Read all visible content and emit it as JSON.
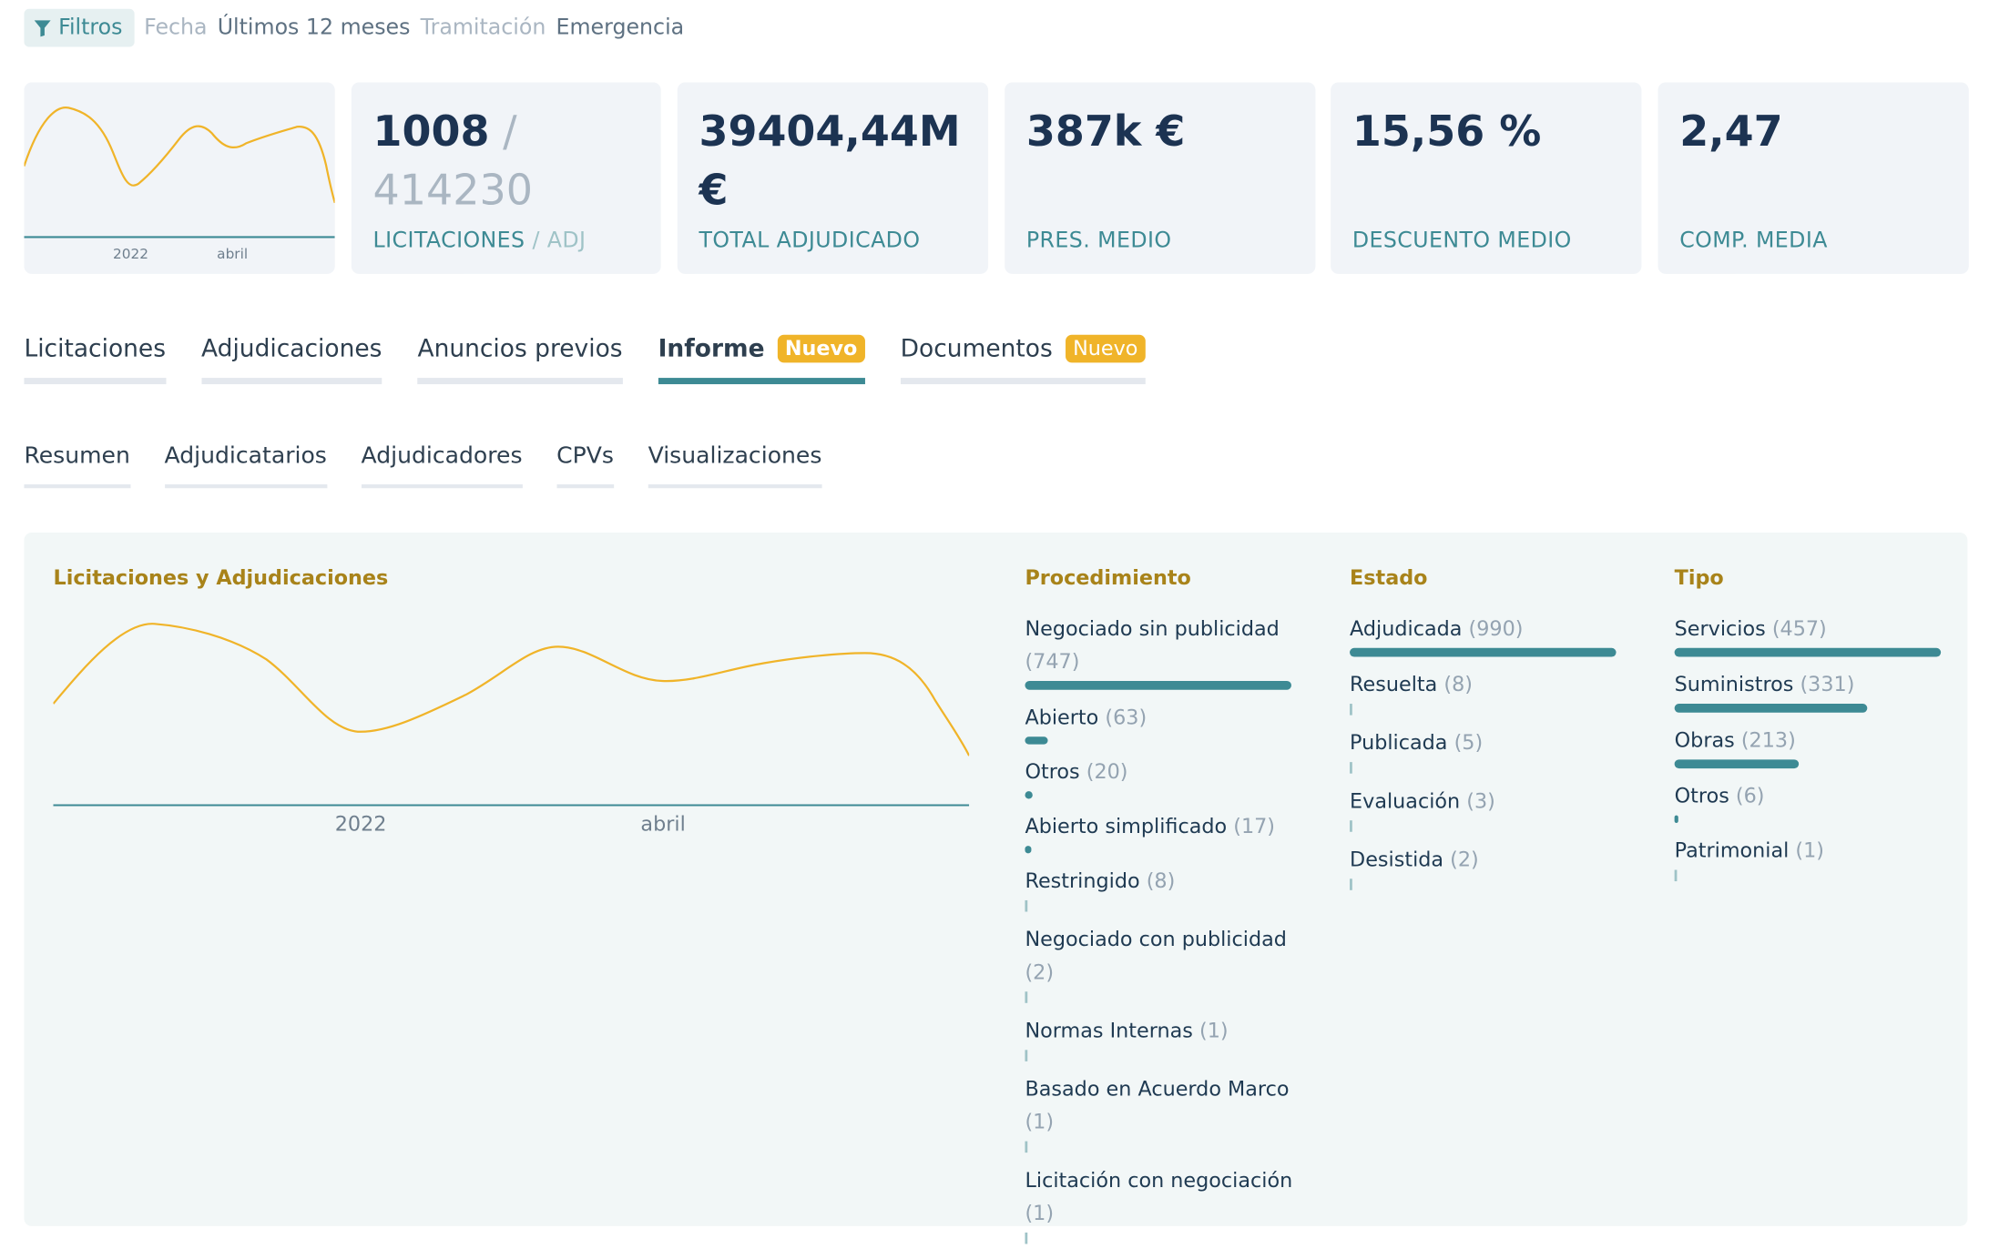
{
  "filters": {
    "button_label": "Filtros",
    "date_key": "Fecha",
    "date_value": "Últimos 12 meses",
    "processing_key": "Tramitación",
    "processing_value": "Emergencia"
  },
  "sparkline": {
    "ticks": [
      "2022",
      "abril"
    ]
  },
  "kpis": [
    {
      "value": "1008",
      "value_suffix": " / ",
      "value_secondary": "414230",
      "label": "LICITACIONES",
      "label_suffix": " / ADJ"
    },
    {
      "value": "39404,44M €",
      "label": "TOTAL ADJUDICADO"
    },
    {
      "value": "387k €",
      "label": "PRES. MEDIO"
    },
    {
      "value": "15,56 %",
      "label": "DESCUENTO MEDIO"
    },
    {
      "value": "2,47",
      "label": "COMP. MEDIA"
    }
  ],
  "tabs": [
    {
      "label": "Licitaciones"
    },
    {
      "label": "Adjudicaciones"
    },
    {
      "label": "Anuncios previos"
    },
    {
      "label": "Informe",
      "badge": "Nuevo",
      "active": true
    },
    {
      "label": "Documentos",
      "badge": "Nuevo"
    }
  ],
  "subtabs": [
    "Resumen",
    "Adjudicatarios",
    "Adjudicadores",
    "CPVs",
    "Visualizaciones"
  ],
  "report": {
    "title": "Licitaciones y Adjudicaciones",
    "ticks": [
      "2022",
      "abril"
    ],
    "procedimiento": {
      "title": "Procedimiento",
      "items": [
        {
          "label": "Negociado sin publicidad",
          "count": "(747)",
          "value": 747
        },
        {
          "label": "Abierto",
          "count": "(63)",
          "value": 63
        },
        {
          "label": "Otros",
          "count": "(20)",
          "value": 20
        },
        {
          "label": "Abierto simplificado",
          "count": "(17)",
          "value": 17
        },
        {
          "label": "Restringido",
          "count": "(8)",
          "value": 8
        },
        {
          "label": "Negociado con publicidad",
          "count": "(2)",
          "value": 2
        },
        {
          "label": "Normas Internas",
          "count": "(1)",
          "value": 1
        },
        {
          "label": "Basado en Acuerdo Marco",
          "count": "(1)",
          "value": 1
        },
        {
          "label": "Licitación con negociación",
          "count": "(1)",
          "value": 1
        }
      ]
    },
    "estado": {
      "title": "Estado",
      "items": [
        {
          "label": "Adjudicada",
          "count": "(990)",
          "value": 990
        },
        {
          "label": "Resuelta",
          "count": "(8)",
          "value": 8
        },
        {
          "label": "Publicada",
          "count": "(5)",
          "value": 5
        },
        {
          "label": "Evaluación",
          "count": "(3)",
          "value": 3
        },
        {
          "label": "Desistida",
          "count": "(2)",
          "value": 2
        }
      ]
    },
    "tipo": {
      "title": "Tipo",
      "items": [
        {
          "label": "Servicios",
          "count": "(457)",
          "value": 457
        },
        {
          "label": "Suministros",
          "count": "(331)",
          "value": 331
        },
        {
          "label": "Obras",
          "count": "(213)",
          "value": 213
        },
        {
          "label": "Otros",
          "count": "(6)",
          "value": 6
        },
        {
          "label": "Patrimonial",
          "count": "(1)",
          "value": 1
        }
      ]
    }
  },
  "colors": {
    "accent": "#3d8a94",
    "line": "#f0b429",
    "heading": "#a8831a",
    "badge": "#f0b429"
  }
}
